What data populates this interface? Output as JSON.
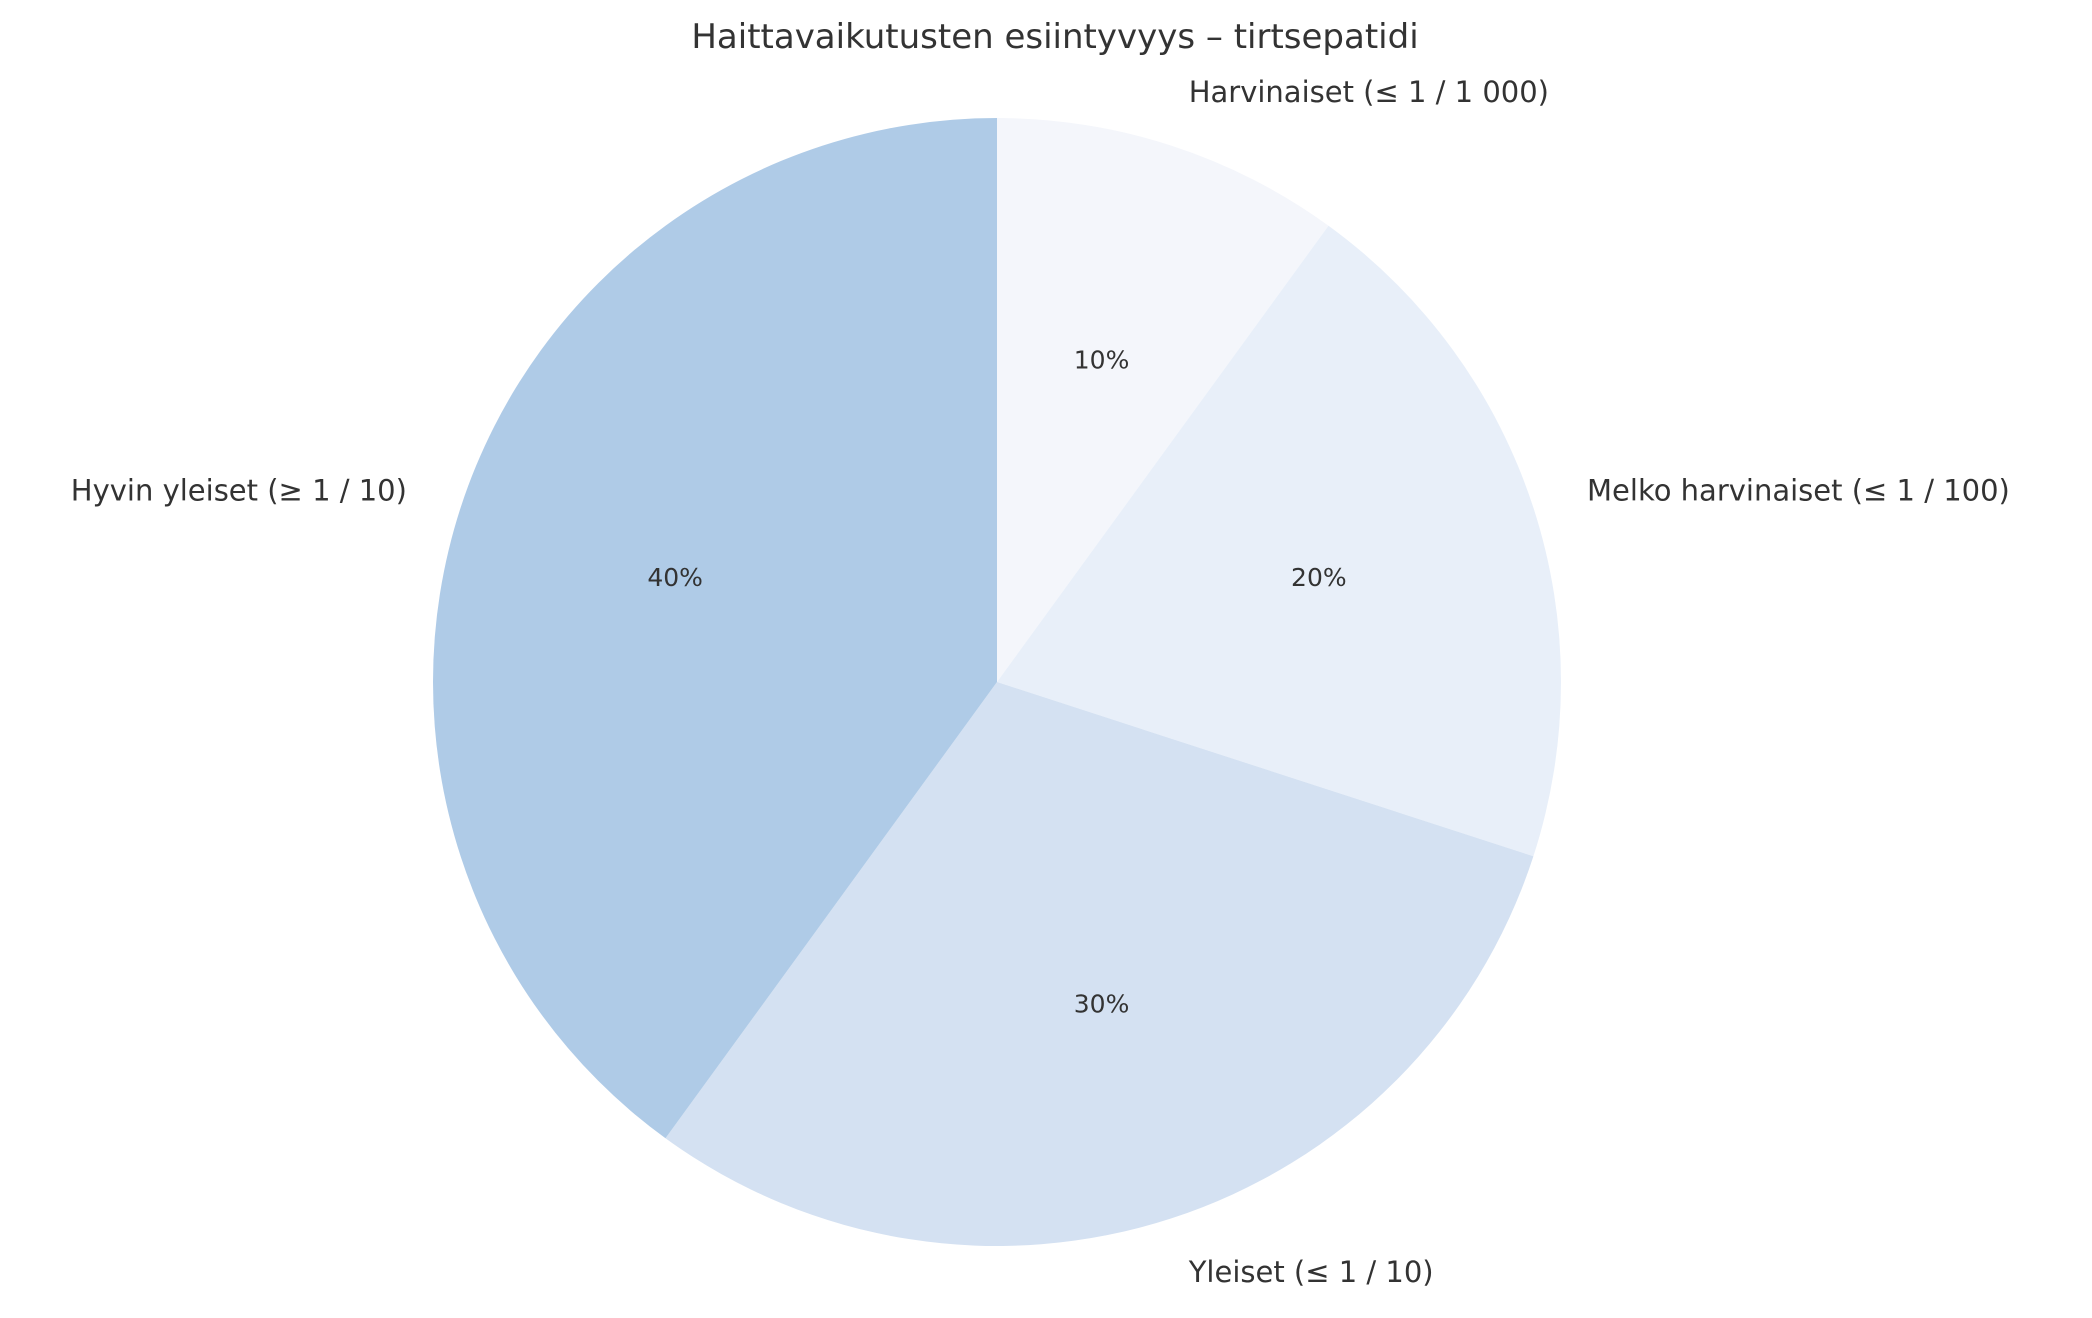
{
  "chart_data": {
    "type": "pie",
    "title": "Haittavaikutusten esiintyvyys – tirtsepatidi",
    "categories": [
      "Harvinaiset (≤ 1 / 1 000)",
      "Melko harvinaiset (≤ 1 / 100)",
      "Yleiset (≤ 1 / 10)",
      "Hyvin yleiset (≥ 1 / 10)"
    ],
    "values": [
      10,
      20,
      30,
      40
    ],
    "percent_labels": [
      "10%",
      "20%",
      "30%",
      "40%"
    ],
    "colors": [
      "#f4f6fb",
      "#e8eff9",
      "#d4e1f2",
      "#afcbe7"
    ],
    "start_angle": "top (12 o'clock)",
    "direction": "clockwise",
    "legend": "none",
    "grid": false
  }
}
